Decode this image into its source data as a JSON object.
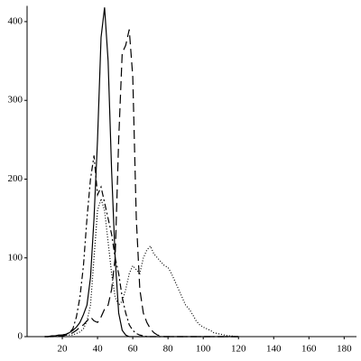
{
  "chart_data": {
    "type": "line",
    "x": [
      10,
      12,
      14,
      16,
      18,
      20,
      22,
      24,
      26,
      28,
      30,
      32,
      34,
      36,
      38,
      40,
      42,
      44,
      46,
      48,
      50,
      52,
      54,
      56,
      58,
      60,
      62,
      64,
      66,
      68,
      70,
      72,
      74,
      76,
      78,
      80,
      82,
      84,
      86,
      88,
      90,
      92,
      94,
      96,
      98,
      100,
      102,
      104,
      106,
      108,
      110,
      112,
      114,
      116,
      118,
      120
    ],
    "series": [
      {
        "color": "#000000",
        "dash": "none",
        "values": [
          0,
          0,
          1,
          1,
          2,
          2,
          3,
          5,
          8,
          12,
          18,
          28,
          40,
          75,
          150,
          250,
          380,
          418,
          350,
          210,
          100,
          30,
          8,
          2,
          0,
          0,
          0,
          0,
          0,
          0,
          0,
          0,
          0,
          0,
          0,
          0,
          0,
          0,
          0,
          0,
          0,
          0,
          0,
          0,
          0,
          0,
          0,
          0,
          0,
          0,
          0,
          0,
          0,
          0,
          0,
          0
        ]
      },
      {
        "color": "#000000",
        "dash": "10,5",
        "values": [
          0,
          0,
          0,
          0,
          1,
          1,
          2,
          3,
          5,
          8,
          12,
          15,
          20,
          25,
          20,
          18,
          25,
          35,
          40,
          60,
          100,
          250,
          360,
          370,
          390,
          330,
          150,
          60,
          30,
          18,
          10,
          5,
          2,
          1,
          0,
          0,
          0,
          0,
          0,
          0,
          0,
          0,
          0,
          0,
          0,
          0,
          0,
          0,
          0,
          0,
          0,
          0,
          0,
          0,
          0,
          0
        ]
      },
      {
        "color": "#000000",
        "dash": "7,3,2,3",
        "values": [
          0,
          0,
          1,
          1,
          1,
          2,
          3,
          5,
          10,
          25,
          50,
          90,
          150,
          200,
          230,
          180,
          190,
          170,
          150,
          130,
          100,
          80,
          50,
          30,
          15,
          8,
          4,
          2,
          1,
          0,
          0,
          0,
          0,
          0,
          0,
          0,
          0,
          0,
          0,
          0,
          0,
          0,
          0,
          0,
          0,
          0,
          0,
          0,
          0,
          0,
          0,
          0,
          0,
          0,
          0,
          0
        ]
      },
      {
        "color": "#000000",
        "dash": "1,2",
        "values": [
          0,
          0,
          0,
          1,
          1,
          1,
          2,
          2,
          2,
          4,
          6,
          10,
          20,
          40,
          100,
          160,
          175,
          160,
          120,
          80,
          50,
          40,
          45,
          60,
          80,
          90,
          85,
          80,
          100,
          110,
          115,
          105,
          100,
          95,
          90,
          88,
          80,
          70,
          60,
          50,
          40,
          35,
          28,
          20,
          15,
          12,
          10,
          8,
          5,
          4,
          3,
          2,
          1,
          1,
          0,
          0
        ]
      }
    ],
    "xlim": [
      0,
      187
    ],
    "ylim": [
      0,
      420
    ],
    "xticks": [
      20,
      40,
      60,
      80,
      100,
      120,
      140,
      160,
      180
    ],
    "yticks": [
      0,
      100,
      200,
      300,
      400
    ]
  }
}
